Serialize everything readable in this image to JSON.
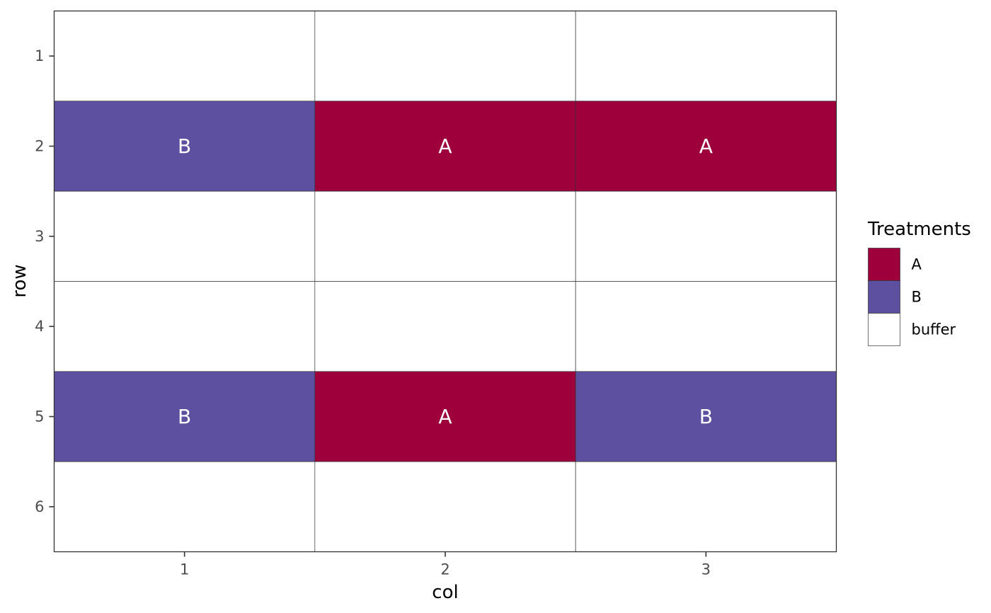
{
  "chart_data": {
    "type": "heatmap",
    "title": "",
    "xlabel": "col",
    "ylabel": "row",
    "x_categories": [
      "1",
      "2",
      "3"
    ],
    "y_categories": [
      "1",
      "2",
      "3",
      "4",
      "5",
      "6"
    ],
    "y_reversed": true,
    "grid": false,
    "legend": {
      "title": "Treatments",
      "placement": "right",
      "entries": [
        {
          "label": "A",
          "color": "#9e003c"
        },
        {
          "label": "B",
          "color": "#5d50a0"
        },
        {
          "label": "buffer",
          "color": "#ffffff"
        }
      ]
    },
    "cells": [
      {
        "col": 1,
        "row": 1,
        "treatment": "buffer",
        "label": ""
      },
      {
        "col": 2,
        "row": 1,
        "treatment": "buffer",
        "label": ""
      },
      {
        "col": 3,
        "row": 1,
        "treatment": "buffer",
        "label": ""
      },
      {
        "col": 1,
        "row": 2,
        "treatment": "B",
        "label": "B"
      },
      {
        "col": 2,
        "row": 2,
        "treatment": "A",
        "label": "A"
      },
      {
        "col": 3,
        "row": 2,
        "treatment": "A",
        "label": "A"
      },
      {
        "col": 1,
        "row": 3,
        "treatment": "buffer",
        "label": ""
      },
      {
        "col": 2,
        "row": 3,
        "treatment": "buffer",
        "label": ""
      },
      {
        "col": 3,
        "row": 3,
        "treatment": "buffer",
        "label": ""
      },
      {
        "col": 1,
        "row": 4,
        "treatment": "buffer",
        "label": ""
      },
      {
        "col": 2,
        "row": 4,
        "treatment": "buffer",
        "label": ""
      },
      {
        "col": 3,
        "row": 4,
        "treatment": "buffer",
        "label": ""
      },
      {
        "col": 1,
        "row": 5,
        "treatment": "B",
        "label": "B"
      },
      {
        "col": 2,
        "row": 5,
        "treatment": "A",
        "label": "A"
      },
      {
        "col": 3,
        "row": 5,
        "treatment": "B",
        "label": "B"
      },
      {
        "col": 1,
        "row": 6,
        "treatment": "buffer",
        "label": ""
      },
      {
        "col": 2,
        "row": 6,
        "treatment": "buffer",
        "label": ""
      },
      {
        "col": 3,
        "row": 6,
        "treatment": "buffer",
        "label": ""
      }
    ]
  }
}
